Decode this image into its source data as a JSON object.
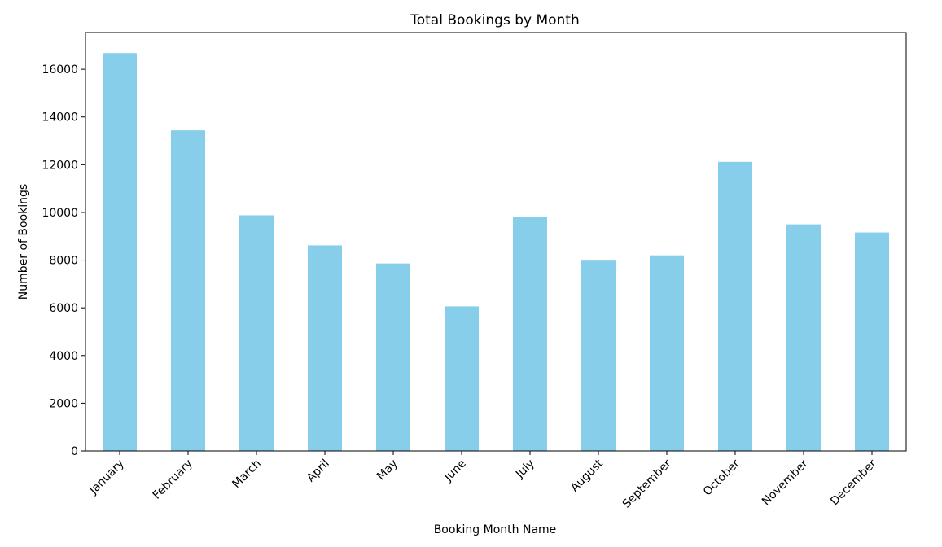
{
  "chart_data": {
    "type": "bar",
    "title": "Total Bookings by Month",
    "xlabel": "Booking Month Name",
    "ylabel": "Number of Bookings",
    "categories": [
      "January",
      "February",
      "March",
      "April",
      "May",
      "June",
      "July",
      "August",
      "September",
      "October",
      "November",
      "December"
    ],
    "values": [
      16680,
      13440,
      9880,
      8620,
      7860,
      6060,
      9820,
      7980,
      8200,
      12120,
      9500,
      9160
    ],
    "ylim": [
      0,
      17540
    ],
    "yticks": [
      "0",
      "2000",
      "4000",
      "6000",
      "8000",
      "10000",
      "12000",
      "14000",
      "16000"
    ],
    "ytick_values": [
      0,
      2000,
      4000,
      6000,
      8000,
      10000,
      12000,
      14000,
      16000
    ],
    "bar_color": "#87CEEB",
    "grid": false,
    "legend": "none"
  }
}
